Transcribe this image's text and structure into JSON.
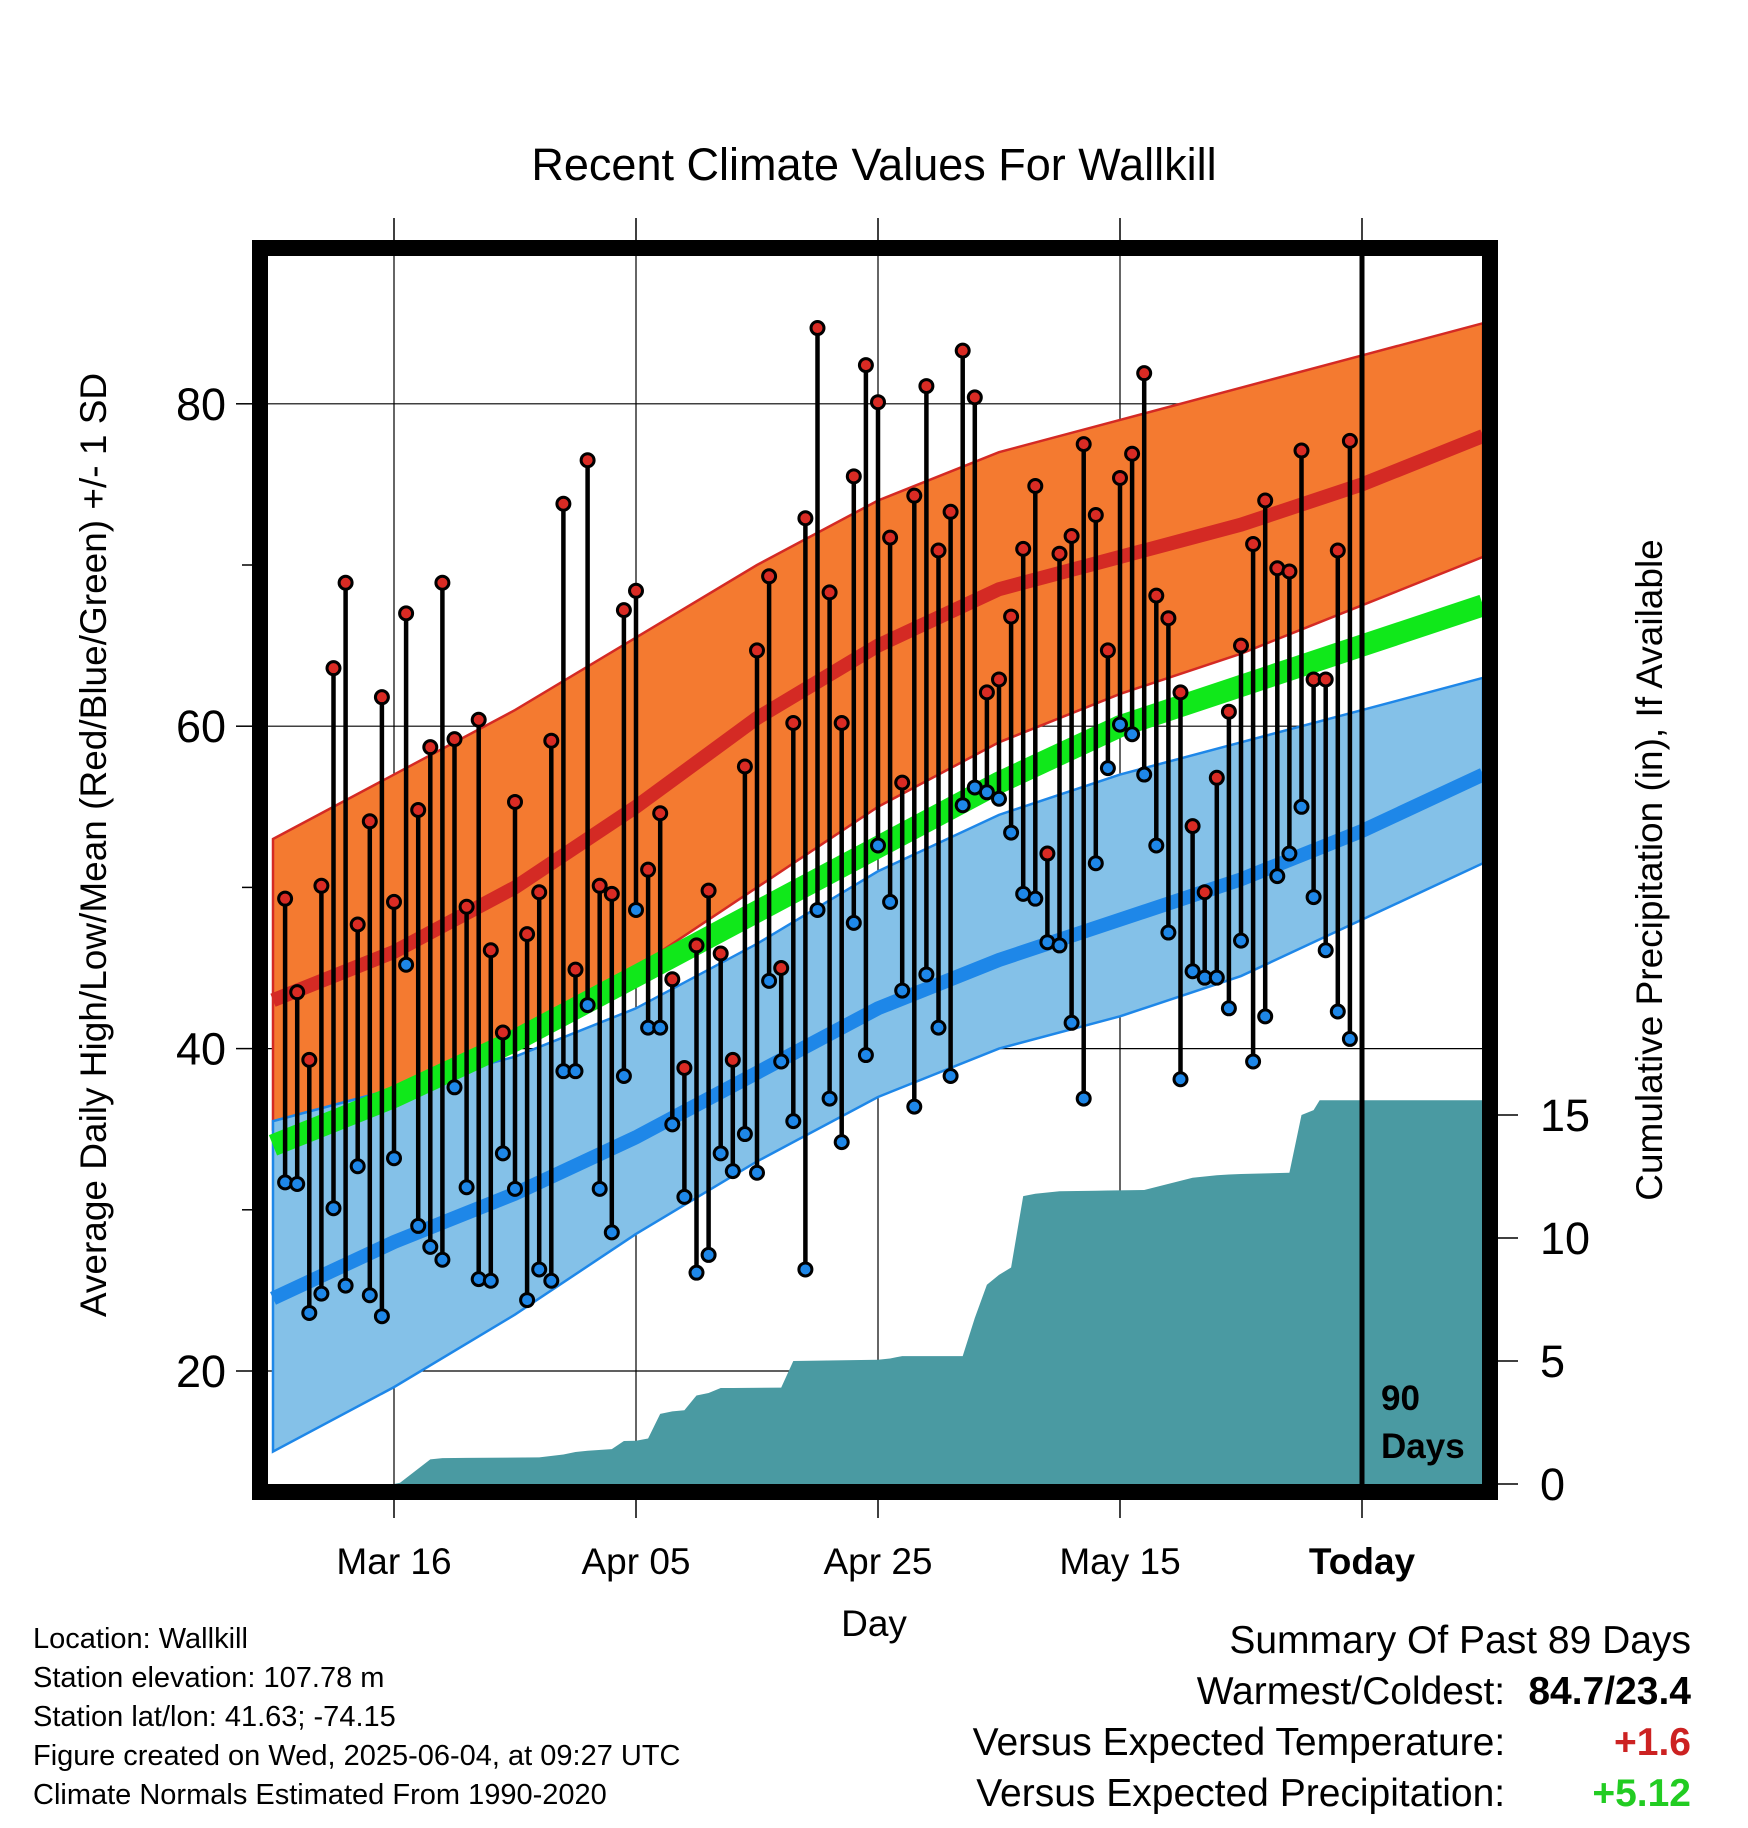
{
  "chart_data": {
    "type": "line",
    "title": "Recent Climate Values For Wallkill",
    "xlabel": "Day",
    "ylabel": "Average Daily High/Low/Mean (Red/Blue/Green) +/- 1 SD",
    "y2label": "Cumulative Precipitation (in), If Available",
    "ylim": [
      14,
      91
    ],
    "y2lim": [
      0,
      31
    ],
    "y_ticks": [
      20,
      40,
      60,
      80
    ],
    "y2_ticks": [
      0,
      5,
      10,
      15
    ],
    "x_tick_labels": [
      "Mar 16",
      "Apr 05",
      "Apr 25",
      "May 15",
      "Today"
    ],
    "x_tick_days": [
      10,
      30,
      50,
      70,
      90
    ],
    "x_range": [
      0,
      100
    ],
    "grid": true,
    "today_marker": {
      "day": 90,
      "label_line1": "90",
      "label_line2": "Days"
    },
    "colors": {
      "high_band": "#f47a30",
      "high_line": "#d42a24",
      "low_band": "#84c1e8",
      "low_line": "#1e87e8",
      "mean_line": "#10e81a",
      "precip": "#4a9aa2",
      "high_marker": "#d92b24",
      "low_marker": "#1e87e8"
    },
    "normals": {
      "days": [
        0,
        10,
        20,
        30,
        40,
        50,
        60,
        70,
        80,
        90,
        100
      ],
      "high_mean": [
        43.0,
        46.0,
        50.0,
        55.0,
        60.5,
        65.0,
        68.5,
        70.5,
        72.5,
        75.0,
        78.0
      ],
      "high_upper": [
        53.0,
        57.0,
        61.0,
        65.5,
        70.0,
        74.0,
        77.0,
        79.0,
        81.0,
        83.0,
        85.0
      ],
      "high_lower": [
        35.0,
        37.5,
        41.0,
        45.0,
        50.0,
        55.0,
        59.0,
        62.0,
        64.5,
        67.5,
        70.5
      ],
      "mean": [
        34.0,
        37.0,
        40.5,
        44.5,
        48.5,
        52.5,
        56.5,
        60.0,
        62.5,
        65.0,
        67.5
      ],
      "low_mean": [
        24.5,
        28.0,
        31.0,
        34.5,
        38.5,
        42.5,
        45.5,
        48.0,
        50.5,
        53.5,
        57.0
      ],
      "low_upper": [
        35.5,
        37.5,
        39.5,
        42.5,
        46.5,
        51.0,
        54.5,
        57.0,
        59.0,
        61.0,
        63.0
      ],
      "low_lower": [
        15.0,
        19.0,
        23.5,
        28.5,
        33.0,
        37.0,
        40.0,
        42.0,
        44.5,
        48.0,
        51.5
      ]
    },
    "daily_high": [
      49.3,
      43.5,
      39.3,
      50.1,
      63.6,
      68.9,
      47.7,
      54.1,
      61.8,
      49.1,
      67.0,
      54.8,
      58.7,
      68.9,
      59.2,
      48.8,
      60.4,
      46.1,
      41.0,
      55.3,
      47.1,
      49.7,
      59.1,
      73.8,
      44.9,
      76.5,
      50.1,
      49.6,
      67.2,
      68.4,
      51.1,
      54.6,
      44.3,
      38.8,
      46.4,
      49.8,
      45.9,
      39.3,
      57.5,
      64.7,
      69.3,
      45.0,
      60.2,
      72.9,
      84.7,
      68.3,
      60.2,
      75.5,
      82.4,
      80.1,
      71.7,
      56.5,
      74.3,
      81.1,
      70.9,
      73.3,
      83.3,
      80.4,
      62.1,
      62.9,
      66.8,
      71.0,
      74.9,
      52.1,
      70.7,
      71.8,
      77.5,
      73.1,
      64.7,
      75.4,
      76.9,
      81.9,
      68.1,
      66.7,
      62.1,
      53.8,
      49.7,
      56.8,
      60.9,
      65.0,
      71.3,
      74.0,
      69.8,
      69.6,
      77.1,
      62.9,
      62.9,
      70.9,
      77.7
    ],
    "daily_low": [
      31.7,
      31.6,
      23.6,
      24.8,
      30.1,
      25.3,
      32.7,
      24.7,
      23.4,
      33.2,
      45.2,
      29.0,
      27.7,
      26.9,
      37.6,
      31.4,
      25.7,
      25.6,
      33.5,
      31.3,
      24.4,
      26.3,
      25.6,
      38.6,
      38.6,
      42.7,
      31.3,
      28.6,
      38.3,
      48.6,
      41.3,
      41.3,
      35.3,
      30.8,
      26.1,
      27.2,
      33.5,
      32.4,
      34.7,
      32.3,
      44.2,
      39.2,
      35.5,
      26.3,
      48.6,
      36.9,
      34.2,
      47.8,
      39.6,
      52.6,
      49.1,
      43.6,
      36.4,
      44.6,
      41.3,
      38.3,
      55.1,
      56.2,
      55.9,
      55.5,
      53.4,
      49.6,
      49.3,
      46.6,
      46.4,
      41.6,
      36.9,
      51.5,
      57.4,
      60.1,
      59.5,
      57.0,
      52.6,
      47.2,
      38.1,
      44.8,
      44.4,
      44.4,
      42.5,
      46.7,
      39.2,
      42.0,
      50.7,
      52.1,
      55.0,
      49.4,
      46.1,
      42.3,
      40.6
    ],
    "precip_days": [
      0,
      10,
      10.5,
      13,
      14,
      16,
      22,
      24,
      25,
      26,
      28,
      29,
      30,
      31,
      32,
      33,
      34,
      35,
      36,
      37,
      38,
      42,
      43,
      50,
      51,
      51.5,
      52,
      57,
      58,
      59,
      60,
      61,
      62,
      63,
      64,
      65,
      68,
      69,
      72,
      76,
      77,
      78,
      79,
      80,
      84,
      85,
      86,
      86.5,
      87,
      100
    ],
    "precip_cum": [
      0,
      0,
      0.05,
      1.0,
      1.05,
      1.06,
      1.08,
      1.2,
      1.3,
      1.35,
      1.42,
      1.75,
      1.76,
      1.85,
      2.85,
      2.95,
      3.0,
      3.6,
      3.7,
      3.9,
      3.9,
      3.92,
      5.0,
      5.05,
      5.1,
      5.15,
      5.2,
      5.2,
      6.75,
      8.1,
      8.5,
      8.8,
      11.7,
      11.8,
      11.85,
      11.9,
      11.92,
      11.93,
      11.95,
      12.45,
      12.5,
      12.55,
      12.58,
      12.6,
      12.65,
      15.0,
      15.2,
      15.6,
      15.6,
      15.6
    ]
  },
  "info": {
    "location": "Location: Wallkill",
    "elevation": "Station elevation: 107.78 m",
    "latlon": "Station lat/lon: 41.63; -74.15",
    "created": "Figure created on Wed, 2025-06-04, at 09:27 UTC",
    "normals": "Climate Normals Estimated From 1990-2020"
  },
  "summary": {
    "title": "Summary Of Past 89 Days",
    "warmest_coldest_label": "Warmest/Coldest:",
    "warmest_coldest_value": "84.7/23.4",
    "temp_label": "Versus Expected Temperature:",
    "temp_value": "+1.6",
    "precip_label": "Versus Expected Precipitation:",
    "precip_value": "+5.12"
  }
}
